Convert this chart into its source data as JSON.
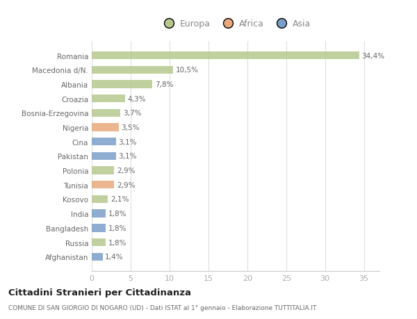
{
  "categories": [
    "Afghanistan",
    "Russia",
    "Bangladesh",
    "India",
    "Kosovo",
    "Tunisia",
    "Polonia",
    "Pakistan",
    "Cina",
    "Nigeria",
    "Bosnia-Erzegovina",
    "Croazia",
    "Albania",
    "Macedonia d/N.",
    "Romania"
  ],
  "values": [
    1.4,
    1.8,
    1.8,
    1.8,
    2.1,
    2.9,
    2.9,
    3.1,
    3.1,
    3.5,
    3.7,
    4.3,
    7.8,
    10.5,
    34.4
  ],
  "continents": [
    "Asia",
    "Europa",
    "Asia",
    "Asia",
    "Europa",
    "Africa",
    "Europa",
    "Asia",
    "Asia",
    "Africa",
    "Europa",
    "Europa",
    "Europa",
    "Europa",
    "Europa"
  ],
  "colors": {
    "Europa": "#b5c98e",
    "Africa": "#e8a87c",
    "Asia": "#7b9ec9"
  },
  "labels": [
    "1,4%",
    "1,8%",
    "1,8%",
    "1,8%",
    "2,1%",
    "2,9%",
    "2,9%",
    "3,1%",
    "3,1%",
    "3,5%",
    "3,7%",
    "4,3%",
    "7,8%",
    "10,5%",
    "34,4%"
  ],
  "xlim": [
    0,
    37
  ],
  "xticks": [
    0,
    5,
    10,
    15,
    20,
    25,
    30,
    35
  ],
  "title": "Cittadini Stranieri per Cittadinanza",
  "subtitle": "COMUNE DI SAN GIORGIO DI NOGARO (UD) - Dati ISTAT al 1° gennaio - Elaborazione TUTTITALIA.IT",
  "bg_color": "#ffffff",
  "bar_height": 0.55,
  "legend_labels": [
    "Europa",
    "Africa",
    "Asia"
  ],
  "legend_colors": [
    "#b5c98e",
    "#e8a87c",
    "#7b9ec9"
  ]
}
